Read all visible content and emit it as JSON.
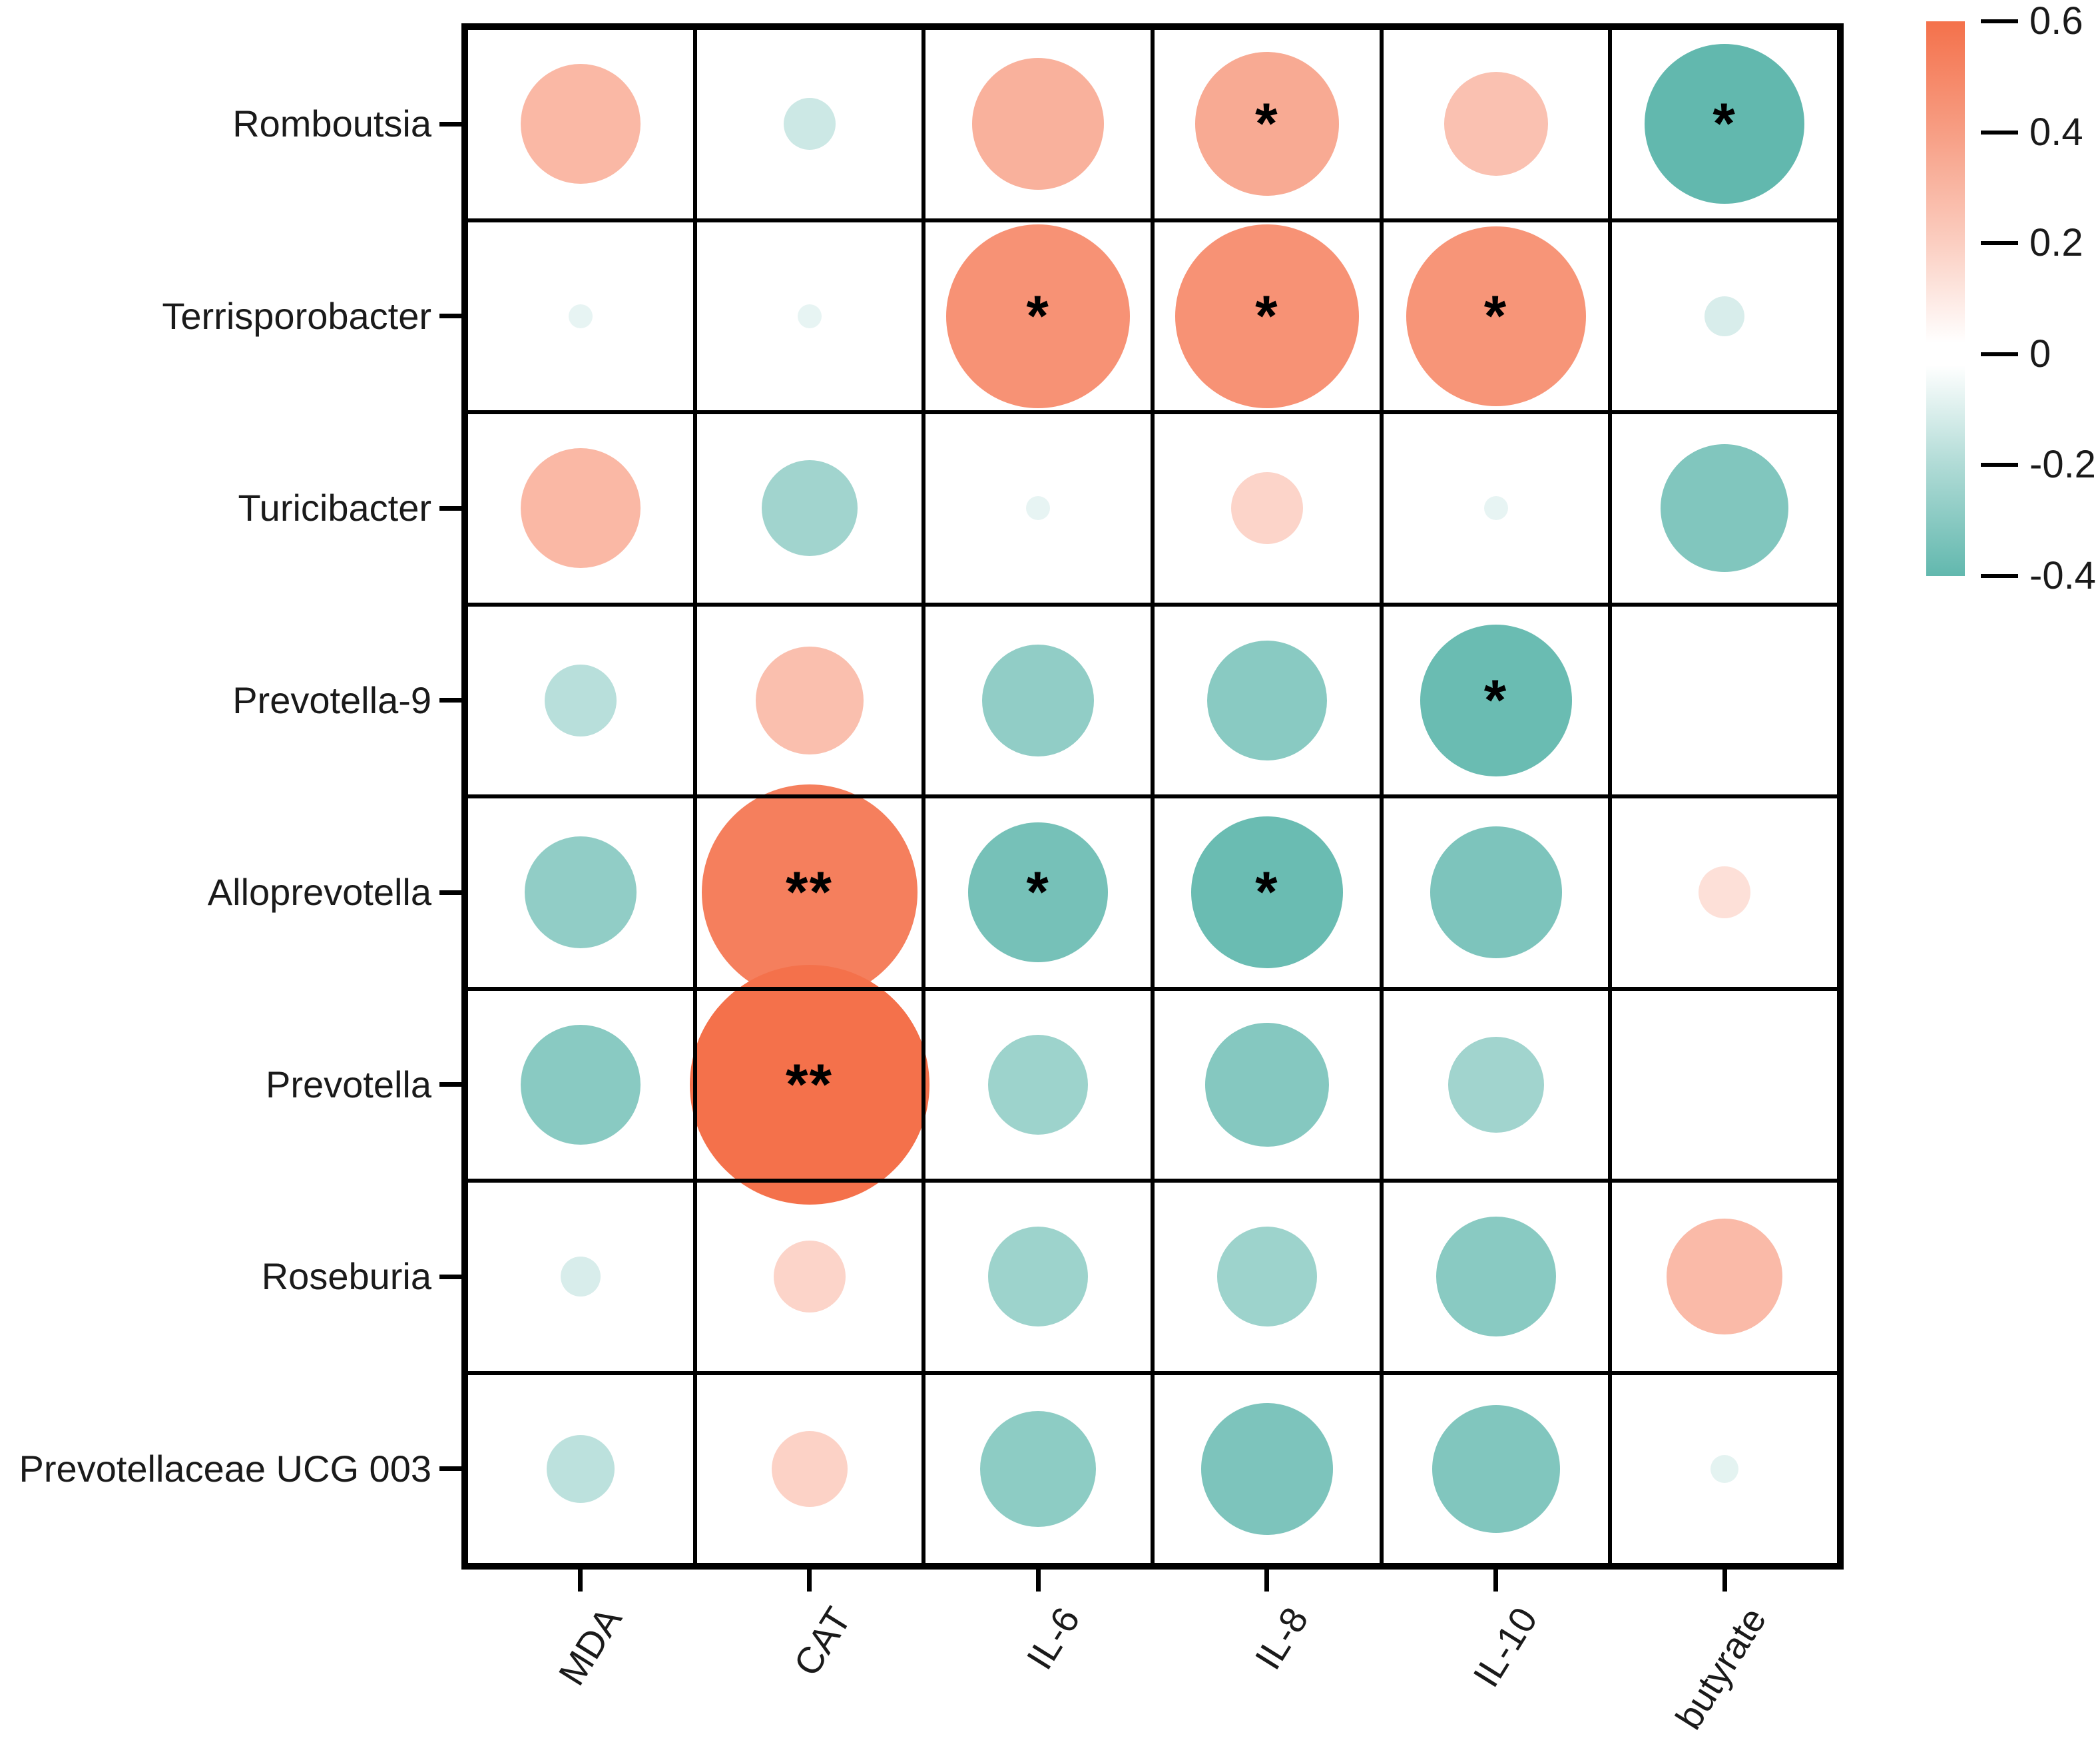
{
  "figure": {
    "background": "#ffffff"
  },
  "chart_data": {
    "type": "heatmap",
    "subtype": "correlation-bubble-matrix",
    "title": "",
    "rows": [
      "Romboutsia",
      "Terrisporobacter",
      "Turicibacter",
      "Prevotella-9",
      "Alloprevotella",
      "Prevotella",
      "Roseburia",
      "Prevotellaceae UCG 003"
    ],
    "columns": [
      "MDA",
      "CAT",
      "IL-6",
      "IL-8",
      "IL-10",
      "butyrate"
    ],
    "values": [
      [
        0.3,
        -0.13,
        0.33,
        0.36,
        0.26,
        -0.4
      ],
      [
        -0.06,
        -0.06,
        0.46,
        0.46,
        0.45,
        -0.1
      ],
      [
        0.3,
        -0.24,
        -0.06,
        0.18,
        -0.06,
        -0.32
      ],
      [
        -0.18,
        0.27,
        -0.28,
        -0.3,
        -0.38,
        null
      ],
      [
        -0.28,
        0.54,
        -0.35,
        -0.38,
        -0.33,
        0.13
      ],
      [
        -0.3,
        0.6,
        -0.25,
        -0.31,
        -0.24,
        null
      ],
      [
        -0.1,
        0.18,
        -0.25,
        -0.25,
        -0.3,
        0.29
      ],
      [
        -0.17,
        0.19,
        -0.29,
        -0.33,
        -0.32,
        -0.07
      ]
    ],
    "significance": [
      [
        "",
        "",
        "",
        "*",
        "",
        "*"
      ],
      [
        "",
        "",
        "*",
        "*",
        "*",
        ""
      ],
      [
        "",
        "",
        "",
        "",
        "",
        ""
      ],
      [
        "",
        "",
        "",
        "",
        "*",
        ""
      ],
      [
        "",
        "**",
        "*",
        "*",
        "",
        ""
      ],
      [
        "",
        "**",
        "",
        "",
        "",
        ""
      ],
      [
        "",
        "",
        "",
        "",
        "",
        ""
      ],
      [
        "",
        "",
        "",
        "",
        "",
        ""
      ]
    ],
    "colorbar": {
      "tick_labels": [
        "0.6",
        "0.4",
        "0.2",
        "0",
        "-0.2",
        "-0.4"
      ],
      "max_value": 0.6,
      "min_value": -0.4,
      "positive_color": "#F4714B",
      "zero_color": "#FFFFFF",
      "negative_color": "#62B8AE",
      "position": "top-right"
    },
    "encoding": {
      "size": "circle diameter proportional to |correlation|",
      "color": "correlation sign and magnitude",
      "significance_marks": "* p<0.05, ** p<0.01 (as rendered in cells)"
    },
    "grid": true,
    "xlabel": "",
    "ylabel": ""
  }
}
